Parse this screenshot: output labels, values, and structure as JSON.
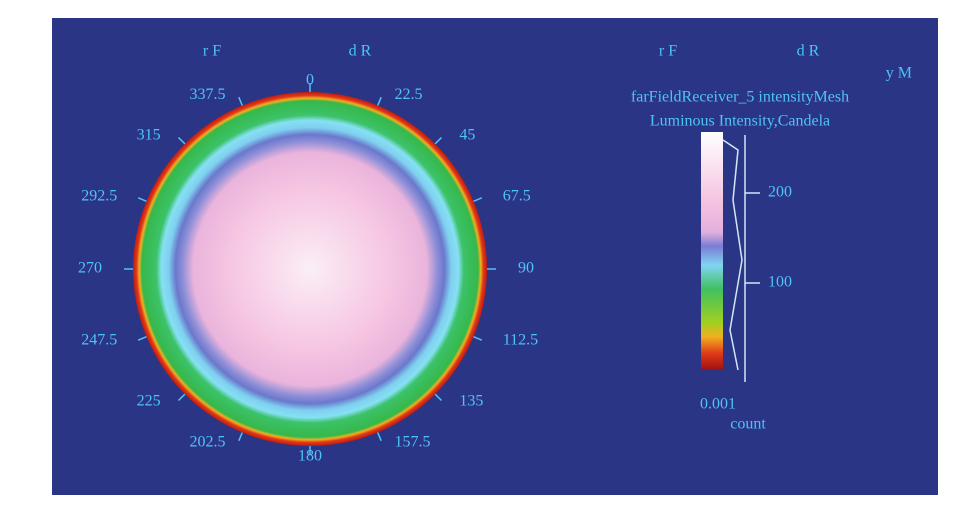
{
  "left_header": {
    "labels": [
      "r F",
      "d R"
    ]
  },
  "right_header": {
    "labels": [
      "r F",
      "d R"
    ],
    "corner": "y M",
    "title": "farFieldReceiver_5 intensityMesh",
    "subtitle": "Luminous Intensity,Candela"
  },
  "polar": {
    "angle_labels": [
      "0",
      "22.5",
      "45",
      "67.5",
      "90",
      "112.5",
      "135",
      "157.5",
      "180",
      "202.5",
      "225",
      "247.5",
      "270",
      "292.5",
      "315",
      "337.5"
    ]
  },
  "colorbar": {
    "tick_labels": [
      "200",
      "100",
      "0.001"
    ],
    "axis_label": "count"
  }
}
